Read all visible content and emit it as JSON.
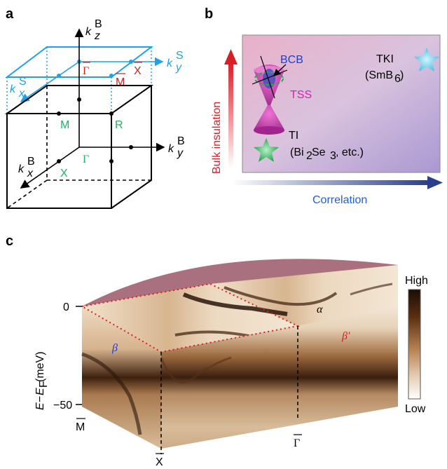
{
  "panels": {
    "a": {
      "letter": "a",
      "axes": {
        "kz_bulk": {
          "base": "k",
          "sub": "z",
          "sup": "B"
        },
        "ky_bulk": {
          "base": "k",
          "sub": "y",
          "sup": "B"
        },
        "kx_bulk": {
          "base": "k",
          "sub": "x",
          "sup": "B"
        },
        "ky_surface": {
          "base": "k",
          "sub": "y",
          "sup": "S"
        },
        "kx_surface": {
          "base": "k",
          "sub": "x",
          "sup": "S"
        }
      },
      "points_surface": [
        "Γ",
        "X",
        "M"
      ],
      "points_bulk": [
        "M",
        "R",
        "Γ",
        "X"
      ],
      "colors": {
        "surface": "#1ea1e6",
        "surface_points": "#d0201f",
        "bulk_points": "#1db362",
        "edges": "#000000"
      }
    },
    "b": {
      "letter": "b",
      "y_axis_label": "Bulk insulation",
      "x_axis_label": "Correlation",
      "labels": {
        "bcb": "BCB",
        "tss": "TSS",
        "tki": "TKI",
        "tki_material": {
          "prefix": "(SmB",
          "sub": "6",
          "suffix": ")"
        },
        "ti": "TI",
        "ti_material": {
          "prefix": "(Bi",
          "sub1": "2",
          "mid": "Se",
          "sub2": "3",
          "suffix": ", etc.)"
        }
      },
      "colors": {
        "y_arrow": "#d81f26",
        "x_arrow": "#2a3f8f",
        "bcb": "#1f3fd9",
        "tss": "#d81fb5",
        "tki_star": "#4dc4e4",
        "ti_star": "#2aa852"
      }
    },
    "c": {
      "letter": "c",
      "y_axis_label": {
        "prefix": "E",
        "dash": "−",
        "e2": "E",
        "sub": "F",
        "unit": " (meV)"
      },
      "y_ticks": [
        "0",
        "−50"
      ],
      "x_points": [
        "M",
        "X",
        "Γ"
      ],
      "band_labels": {
        "beta": "β",
        "beta_prime": "β'",
        "alpha": "α"
      },
      "colorbar": {
        "high": "High",
        "low": "Low"
      },
      "colors": {
        "beta": "#2540c8",
        "beta_prime": "#d81f26",
        "alpha": "#000000",
        "dashed_red": "#e0201f"
      }
    }
  }
}
